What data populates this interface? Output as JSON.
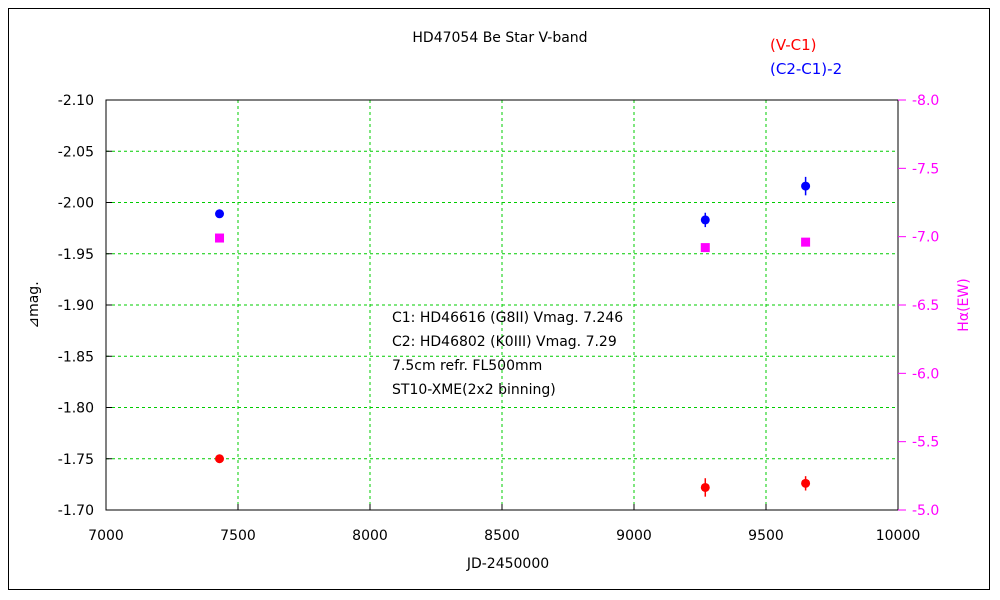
{
  "chart_data": {
    "type": "scatter",
    "title": "HD47054   Be Star   V-band",
    "xlabel": "JD-2450000",
    "ylabel": "⊿mag.",
    "y2label": "Hα(EW)",
    "xlim": [
      7000,
      10000
    ],
    "xticks": [
      7000,
      7500,
      8000,
      8500,
      9000,
      9500,
      10000
    ],
    "xtick_labels": [
      "7000",
      "7500",
      "8000",
      "8500",
      "9000",
      "9500",
      "10000"
    ],
    "ylim": [
      -1.7,
      -2.1
    ],
    "yticks": [
      -2.1,
      -2.05,
      -2.0,
      -1.95,
      -1.9,
      -1.85,
      -1.8,
      -1.75,
      -1.7
    ],
    "ytick_labels": [
      "-2.10",
      "-2.05",
      "-2.00",
      "-1.95",
      "-1.90",
      "-1.85",
      "-1.80",
      "-1.75",
      "-1.70"
    ],
    "y2lim": [
      -5.0,
      -8.0
    ],
    "y2ticks": [
      -8.0,
      -7.5,
      -7.0,
      -6.5,
      -6.0,
      -5.5,
      -5.0
    ],
    "y2tick_labels": [
      "-8.0",
      "-7.5",
      "-7.0",
      "-6.5",
      "-6.0",
      "-5.5",
      "-5.0"
    ],
    "grid": true,
    "legend_position": "top-right",
    "series": [
      {
        "name": "(V-C1)",
        "color": "#ff0000",
        "axis": "left",
        "marker": "circle",
        "points": [
          [
            7430,
            -1.75
          ],
          [
            9270,
            -1.722
          ],
          [
            9650,
            -1.726
          ]
        ],
        "errors": [
          0.004,
          0.009,
          0.007
        ]
      },
      {
        "name": "(C2-C1)-2",
        "color": "#0000ff",
        "axis": "left",
        "marker": "circle",
        "points": [
          [
            7430,
            -1.989
          ],
          [
            9270,
            -1.983
          ],
          [
            9650,
            -2.016
          ]
        ],
        "errors": [
          0.004,
          0.007,
          0.009
        ]
      },
      {
        "name": "Hα",
        "color": "#ff00ff",
        "axis": "right",
        "marker": "square",
        "points": [
          [
            7430,
            -6.99
          ],
          [
            9270,
            -6.92
          ],
          [
            9650,
            -6.96
          ]
        ]
      }
    ],
    "annotations": [
      "C1: HD46616 (G8II) Vmag. 7.246",
      "C2: HD46802 (K0III) Vmag. 7.29",
      "7.5cm refr. FL500mm",
      "ST10-XME(2x2 binning)"
    ],
    "colors": {
      "grid": "#00cc00",
      "right_axis": "#ff00ff"
    }
  }
}
